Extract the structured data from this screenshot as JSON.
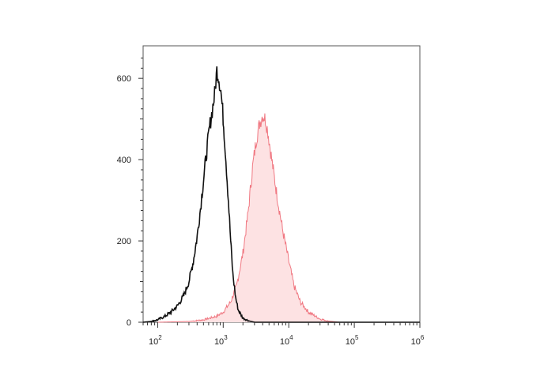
{
  "chart_data": {
    "type": "area",
    "title": "",
    "xlabel": "",
    "ylabel": "",
    "x_scale": "log",
    "xlim": [
      60,
      1000000
    ],
    "ylim": [
      0,
      680
    ],
    "grid": false,
    "legend": "none",
    "x_ticks": [
      {
        "value": 100,
        "base": "10",
        "exp": "2"
      },
      {
        "value": 1000,
        "base": "10",
        "exp": "3"
      },
      {
        "value": 10000,
        "base": "10",
        "exp": "4"
      },
      {
        "value": 100000,
        "base": "10",
        "exp": "5"
      },
      {
        "value": 1000000,
        "base": "10",
        "exp": "6"
      }
    ],
    "y_ticks": [
      {
        "value": 0,
        "label": "0"
      },
      {
        "value": 200,
        "label": "200"
      },
      {
        "value": 400,
        "label": "400"
      },
      {
        "value": 600,
        "label": "600"
      }
    ],
    "series": [
      {
        "style": "line",
        "color": "#111111",
        "x": [
          60,
          80,
          100,
          130,
          160,
          200,
          250,
          300,
          350,
          400,
          450,
          500,
          560,
          620,
          680,
          740,
          800,
          860,
          920,
          980,
          1050,
          1100,
          1200,
          1300,
          1400,
          1550,
          1700,
          2000,
          2500,
          3000,
          5000,
          10000,
          100000,
          1000000
        ],
        "y": [
          0,
          2,
          6,
          15,
          25,
          40,
          65,
          100,
          150,
          210,
          280,
          350,
          420,
          480,
          520,
          560,
          620,
          600,
          570,
          520,
          450,
          400,
          300,
          200,
          120,
          60,
          30,
          10,
          3,
          0,
          0,
          0,
          0,
          0
        ]
      },
      {
        "style": "area",
        "color": "#f07882",
        "fill": "#fde2e3",
        "x": [
          100,
          300,
          500,
          800,
          1000,
          1300,
          1600,
          2000,
          2400,
          2800,
          3200,
          3600,
          4000,
          4400,
          4800,
          5500,
          6500,
          8000,
          10000,
          12000,
          15000,
          20000,
          30000,
          40000,
          60000,
          100000,
          1000000
        ],
        "y": [
          0,
          2,
          6,
          15,
          25,
          50,
          90,
          170,
          270,
          380,
          450,
          490,
          510,
          500,
          470,
          400,
          320,
          230,
          150,
          90,
          50,
          25,
          8,
          3,
          0,
          0,
          0
        ]
      }
    ]
  }
}
